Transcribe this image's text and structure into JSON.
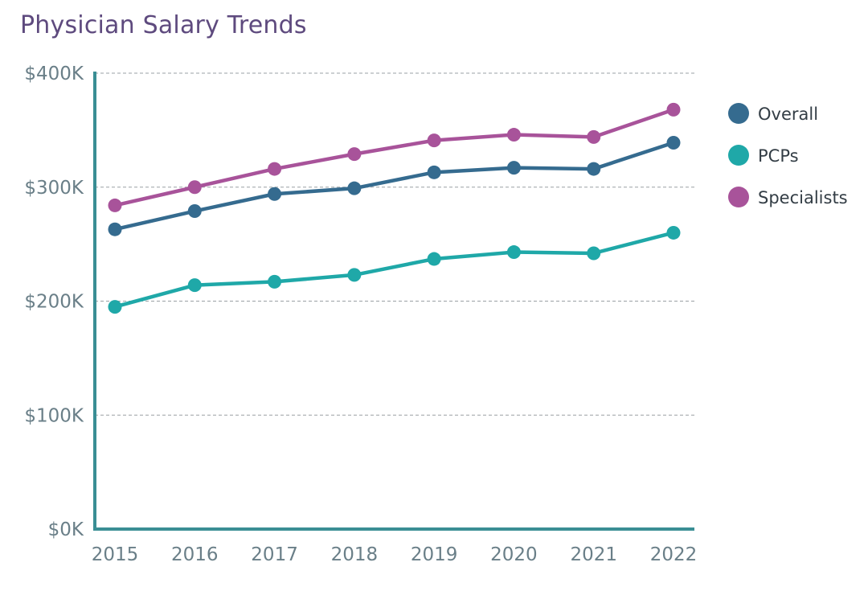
{
  "chart_data": {
    "type": "line",
    "title": "Physician Salary Trends",
    "xlabel": "",
    "ylabel": "",
    "x": [
      "2015",
      "2016",
      "2017",
      "2018",
      "2019",
      "2020",
      "2021",
      "2022"
    ],
    "ylim": [
      0,
      400000
    ],
    "yticks": [
      0,
      100000,
      200000,
      300000,
      400000
    ],
    "ytick_labels": [
      "$0K",
      "$100K",
      "$200K",
      "$300K",
      "$400K"
    ],
    "grid": "horizontal-dashed",
    "legend_position": "right",
    "series": [
      {
        "name": "Overall",
        "color": "#356b8f",
        "values": [
          263000,
          279000,
          294000,
          299000,
          313000,
          317000,
          316000,
          339000
        ]
      },
      {
        "name": "PCPs",
        "color": "#1fa8a8",
        "values": [
          195000,
          214000,
          217000,
          223000,
          237000,
          243000,
          242000,
          260000
        ]
      },
      {
        "name": "Specialists",
        "color": "#a8539a",
        "values": [
          284000,
          300000,
          316000,
          329000,
          341000,
          346000,
          344000,
          368000
        ]
      }
    ]
  },
  "colors": {
    "title": "#5e4a7e",
    "axis": "#3a8e94",
    "grid": "#9aa0a4",
    "tick_text": "#6a7f88"
  }
}
